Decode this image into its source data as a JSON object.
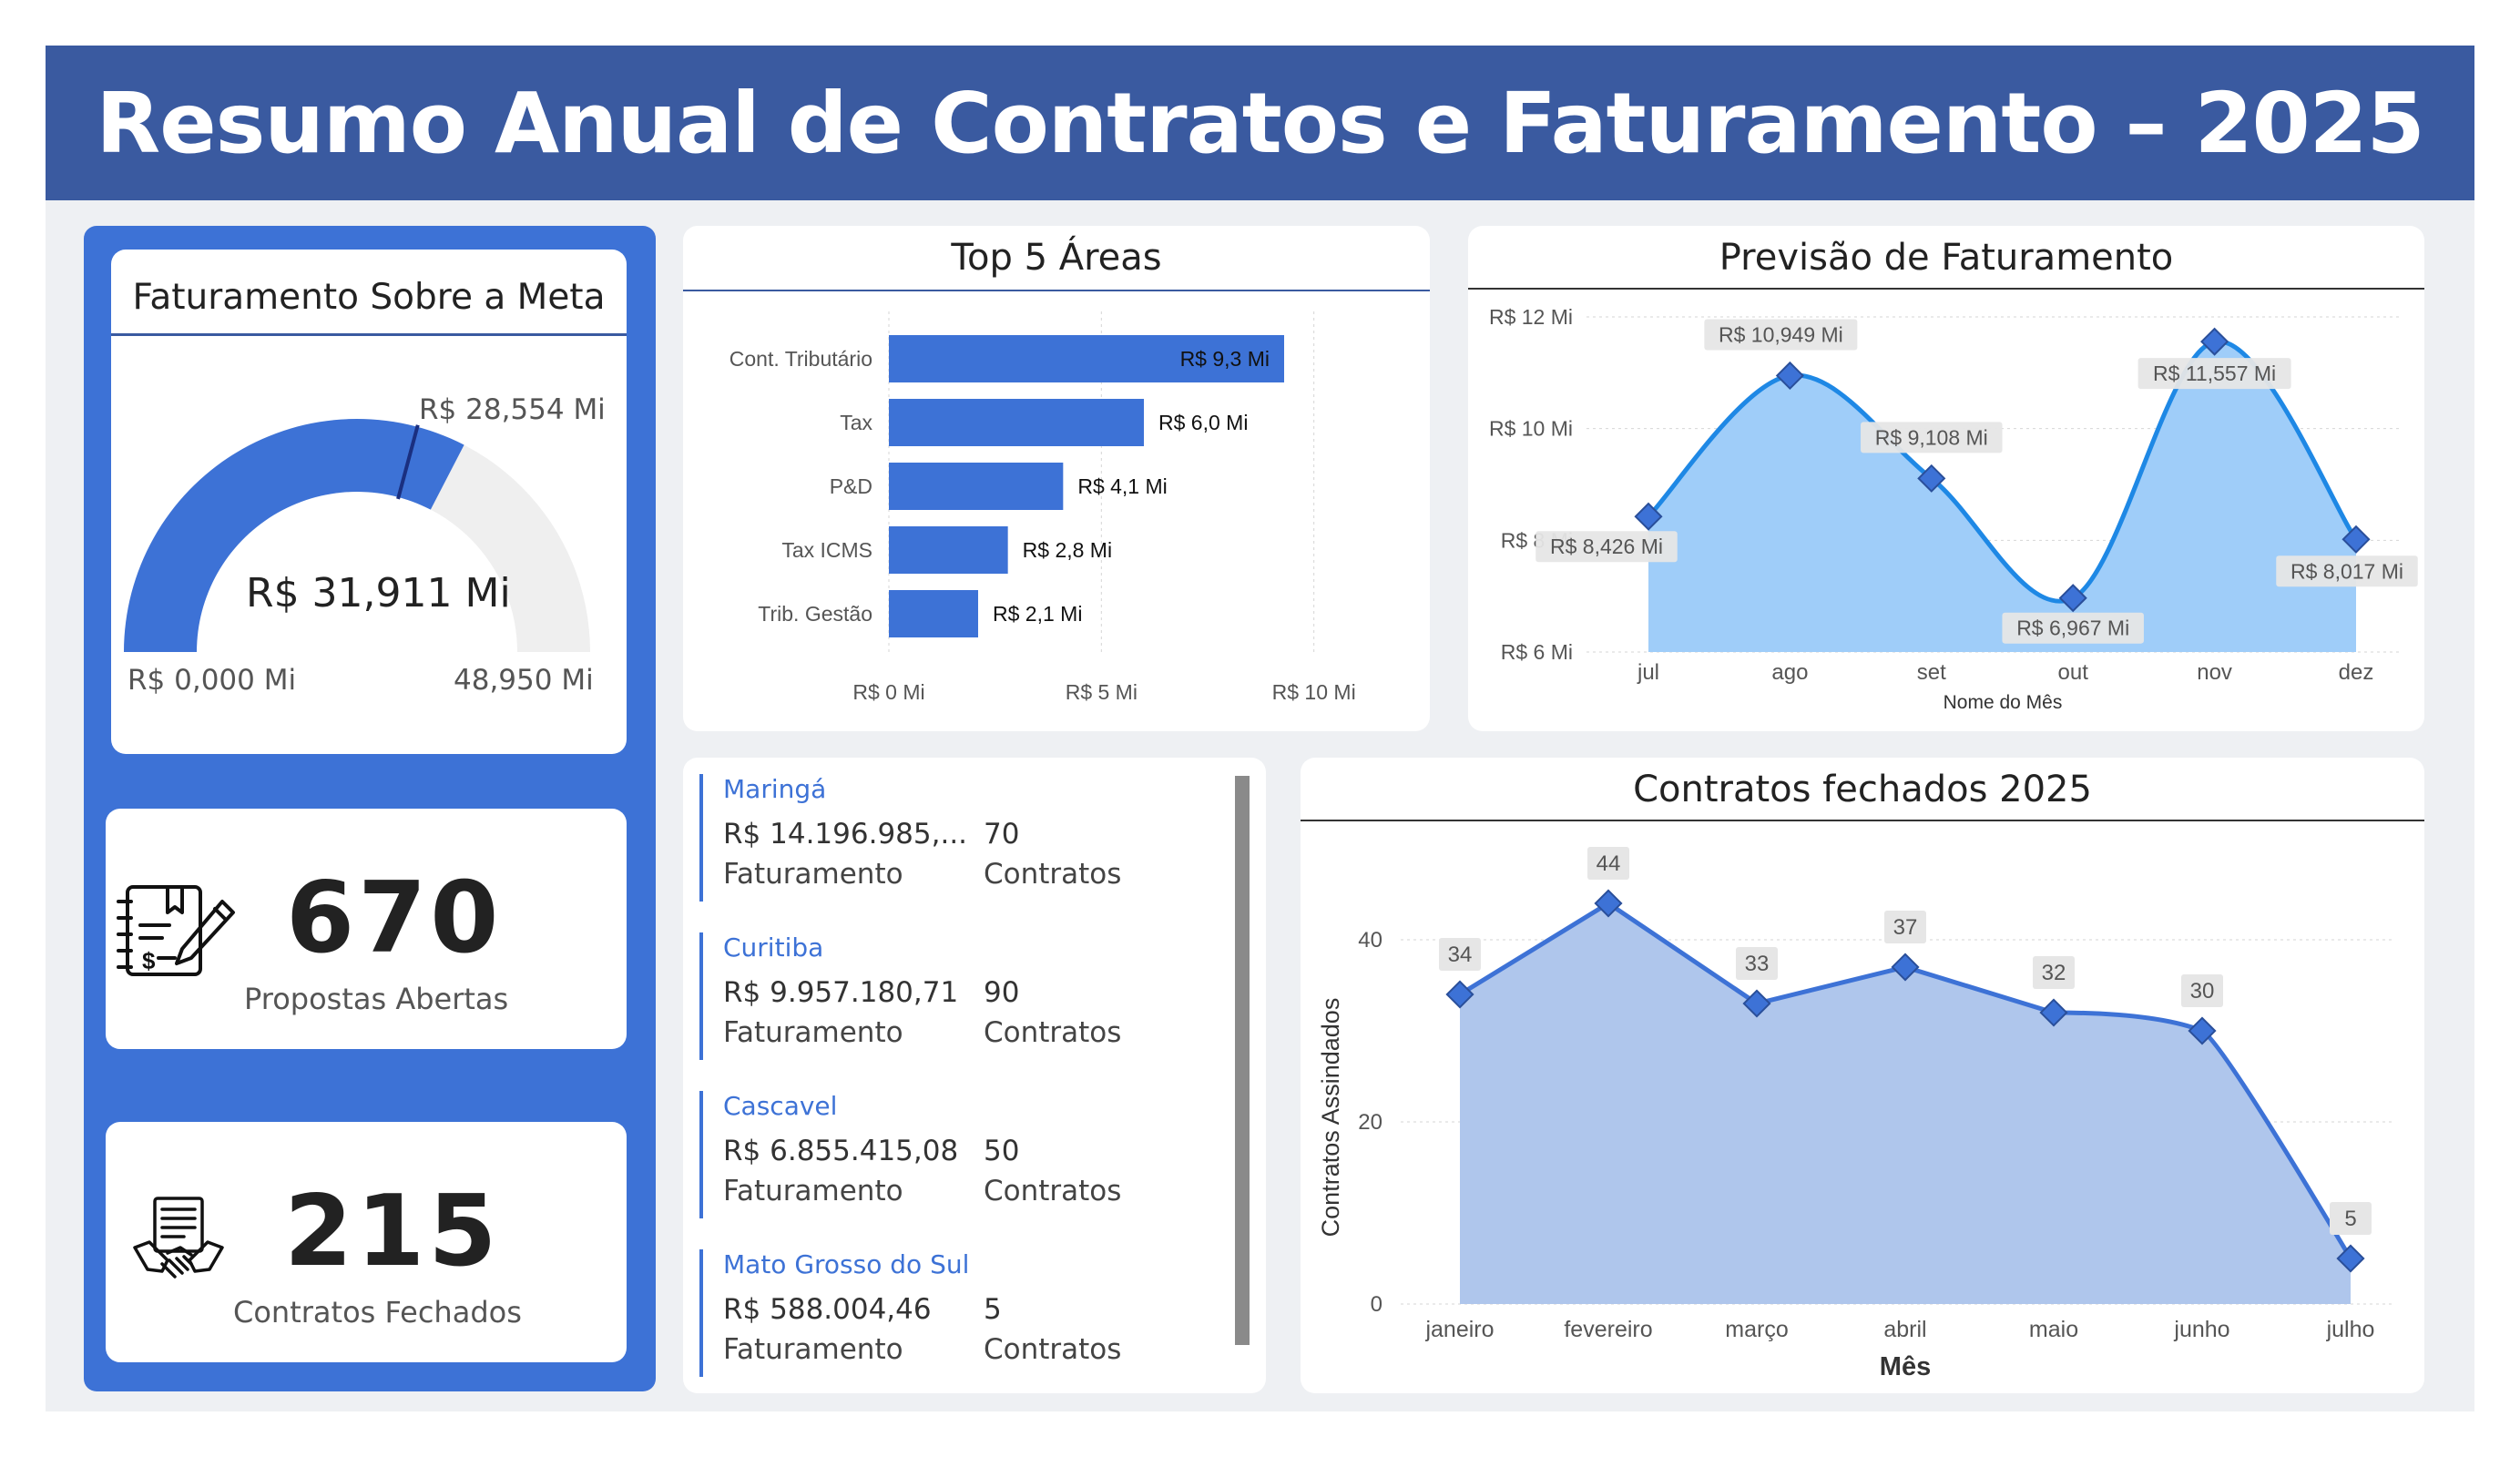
{
  "header": {
    "title": "Resumo Anual de Contratos e Faturamento – 2025"
  },
  "gauge": {
    "title": "Faturamento Sobre a Meta",
    "value_label": "R$ 31,911 Mi",
    "target_label": "R$ 28,554 Mi",
    "min_label": "R$ 0,000 Mi",
    "max_label": "48,950 Mi",
    "value": 31.911,
    "target": 28.554,
    "min": 0,
    "max": 48.95,
    "fill_color": "#3d72d6",
    "track_color": "#efefef",
    "target_color": "#1a2f80"
  },
  "kpis": {
    "propostas": {
      "value": "670",
      "label": "Propostas Abertas",
      "icon": "contract-signing-icon"
    },
    "contratos": {
      "value": "215",
      "label": "Contratos Fechados",
      "icon": "handshake-document-icon"
    }
  },
  "top_areas": {
    "title": "Top 5 Áreas",
    "x_ticks": [
      "R$ 0 Mi",
      "R$ 5 Mi",
      "R$ 10 Mi"
    ]
  },
  "forecast": {
    "title": "Previsão de Faturamento",
    "xlabel": "Nome do Mês",
    "y_ticks": [
      "R$ 12 Mi",
      "R$ 10 Mi",
      "R$ 8 Mi",
      "R$ 6 Mi"
    ],
    "data_labels": [
      "R$ 8,426 Mi",
      "R$ 10,949 Mi",
      "R$ 9,108 Mi",
      "R$ 6,967 Mi",
      "R$ 11,557 Mi",
      "R$ 8,017 Mi"
    ]
  },
  "closed": {
    "title": "Contratos fechados 2025",
    "xlabel": "Mês",
    "ylabel": "Contratos Assindados",
    "y_ticks": [
      "40",
      "20",
      "0"
    ]
  },
  "cities": [
    {
      "name": "Maringá",
      "revenue": "R$ 14.196.985,...",
      "revenue_label": "Faturamento",
      "contracts": "70",
      "contracts_label": "Contratos"
    },
    {
      "name": "Curitiba",
      "revenue": "R$ 9.957.180,71",
      "revenue_label": "Faturamento",
      "contracts": "90",
      "contracts_label": "Contratos"
    },
    {
      "name": "Cascavel",
      "revenue": "R$ 6.855.415,08",
      "revenue_label": "Faturamento",
      "contracts": "50",
      "contracts_label": "Contratos"
    },
    {
      "name": "Mato Grosso do Sul",
      "revenue": "R$ 588.004,46",
      "revenue_label": "Faturamento",
      "contracts": "5",
      "contracts_label": "Contratos"
    }
  ],
  "chart_data": [
    {
      "type": "bar",
      "title": "Top 5 Áreas",
      "orientation": "horizontal",
      "categories": [
        "Cont. Tributário",
        "Tax",
        "P&D",
        "Tax ICMS",
        "Trib. Gestão"
      ],
      "values": [
        9.3,
        6.0,
        4.1,
        2.8,
        2.1
      ],
      "value_labels": [
        "R$ 9,3 Mi",
        "R$ 6,0 Mi",
        "R$ 4,1 Mi",
        "R$ 2,8 Mi",
        "R$ 2,1 Mi"
      ],
      "xlim": [
        0,
        12
      ],
      "grid": true,
      "color": "#3d72d6"
    },
    {
      "type": "area",
      "title": "Previsão de Faturamento",
      "categories": [
        "jul",
        "ago",
        "set",
        "out",
        "nov",
        "dez"
      ],
      "values": [
        8.426,
        10.949,
        9.108,
        6.967,
        11.557,
        8.017
      ],
      "xlabel": "Nome do Mês",
      "ylim": [
        6,
        12
      ],
      "grid": true,
      "line_color": "#1e88e5",
      "fill_color": "#9fcdf9"
    },
    {
      "type": "area",
      "title": "Contratos fechados 2025",
      "categories": [
        "janeiro",
        "fevereiro",
        "março",
        "abril",
        "maio",
        "junho",
        "julho"
      ],
      "values": [
        34,
        44,
        33,
        37,
        32,
        30,
        5
      ],
      "xlabel": "Mês",
      "ylabel": "Contratos Assindados",
      "ylim": [
        0,
        48
      ],
      "grid": true,
      "line_color": "#3d72d6",
      "fill_color": "#afc6ec"
    }
  ]
}
